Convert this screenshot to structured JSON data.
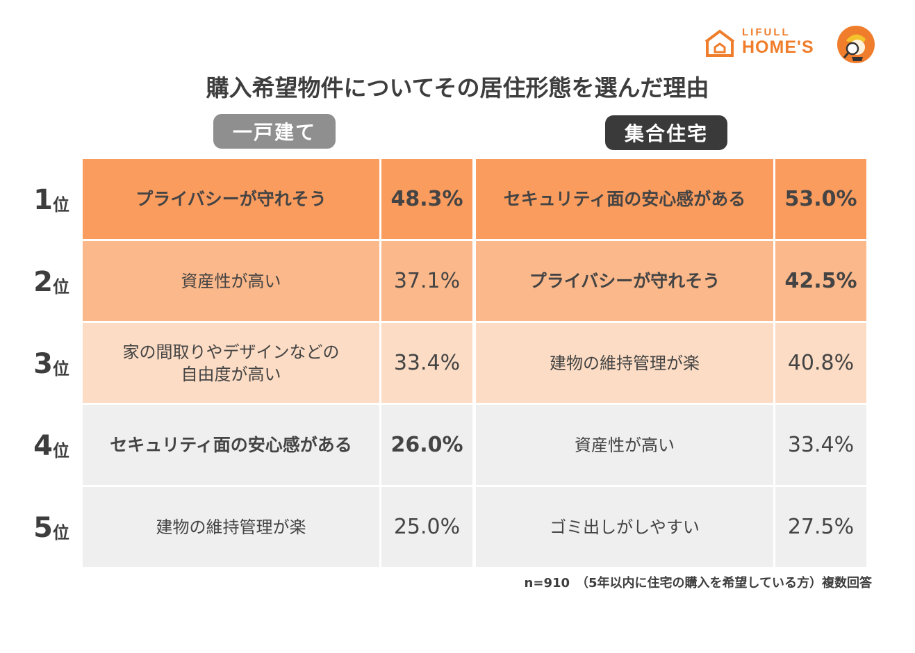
{
  "logo": {
    "small_text": "LIFULL",
    "big_text": "HOME'S"
  },
  "title": "購入希望物件についてその居住形態を選んだ理由",
  "headers": {
    "house": "一戸建て",
    "apartment": "集合住宅"
  },
  "rank_suffix": "位",
  "colors": {
    "rank1": "#fa9c5e",
    "rank2": "#fbb88b",
    "rank3": "#fcdcc4",
    "rank4": "#efefef",
    "rank5": "#efefef",
    "pill_house": "#8f8f8f",
    "pill_apartment": "#3a3a3a",
    "brand": "#ef7d2b"
  },
  "chart_data": {
    "type": "table",
    "title": "購入希望物件についてその居住形態を選んだ理由",
    "columns": [
      "一戸建て",
      "集合住宅"
    ],
    "unit": "%",
    "rows": [
      {
        "rank": "1",
        "house": {
          "reason": "プライバシーが守れそう",
          "value": "48.3%",
          "bold": true
        },
        "apartment": {
          "reason": "セキュリティ面の安心感がある",
          "value": "53.0%",
          "bold": true
        }
      },
      {
        "rank": "2",
        "house": {
          "reason": "資産性が高い",
          "value": "37.1%",
          "bold": false
        },
        "apartment": {
          "reason": "プライバシーが守れそう",
          "value": "42.5%",
          "bold": true
        }
      },
      {
        "rank": "3",
        "house": {
          "reason": "家の間取りやデザインなどの\n自由度が高い",
          "value": "33.4%",
          "bold": false
        },
        "apartment": {
          "reason": "建物の維持管理が楽",
          "value": "40.8%",
          "bold": false
        }
      },
      {
        "rank": "4",
        "house": {
          "reason": "セキュリティ面の安心感がある",
          "value": "26.0%",
          "bold": true
        },
        "apartment": {
          "reason": "資産性が高い",
          "value": "33.4%",
          "bold": false
        }
      },
      {
        "rank": "5",
        "house": {
          "reason": "建物の維持管理が楽",
          "value": "25.0%",
          "bold": false
        },
        "apartment": {
          "reason": "ゴミ出しがしやすい",
          "value": "27.5%",
          "bold": false
        }
      }
    ]
  },
  "footnote": "n=910　（5年以内に住宅の購入を希望している方）複数回答"
}
